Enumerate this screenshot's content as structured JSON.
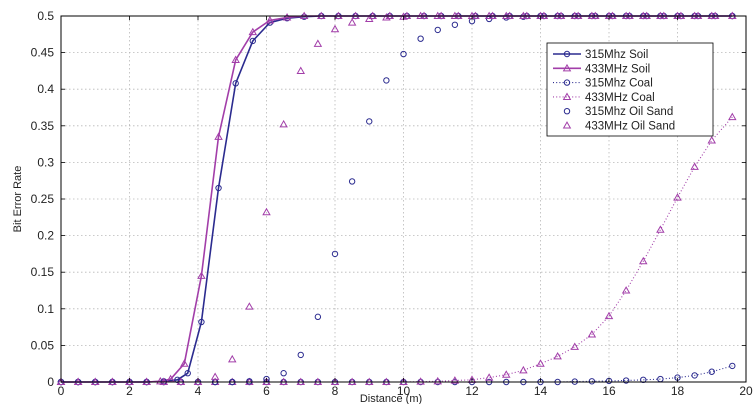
{
  "chart_data": {
    "type": "line",
    "title": "",
    "xlabel": "Distance (m)",
    "ylabel": "Bit Error Rate",
    "xlim": [
      0,
      20
    ],
    "ylim": [
      0,
      0.5
    ],
    "x_ticks": [
      "0",
      "2",
      "4",
      "6",
      "8",
      "10",
      "12",
      "14",
      "16",
      "18",
      "20"
    ],
    "y_ticks": [
      "0",
      "0.05",
      "0.1",
      "0.15",
      "0.2",
      "0.25",
      "0.3",
      "0.35",
      "0.4",
      "0.45",
      "0.5"
    ],
    "grid": true,
    "legend": "top-right",
    "colors": {
      "blue": "#2b2b8f",
      "magenta": "#a23ea9"
    },
    "series": [
      {
        "name": "315Mhz Soil",
        "color": "#2b2b8f",
        "marker": "circle",
        "line": "solid",
        "x": [
          0,
          0.5,
          1,
          1.5,
          2,
          2.5,
          3,
          3.4,
          3.7,
          4.1,
          4.6,
          5.1,
          5.6,
          6.1,
          6.6,
          7.1,
          7.6,
          8.1,
          8.6,
          9.1,
          9.6,
          10.1,
          10.6,
          11.1,
          11.6,
          12.1,
          12.6,
          13.1,
          13.6,
          14.1,
          14.6,
          15.1,
          15.6,
          16.1,
          16.6,
          17.1,
          17.6,
          18.1,
          18.6,
          19.1,
          19.6
        ],
        "y": [
          0,
          0,
          0,
          0,
          0,
          0,
          0.001,
          0.003,
          0.012,
          0.082,
          0.265,
          0.408,
          0.466,
          0.491,
          0.497,
          0.499,
          0.5,
          0.5,
          0.5,
          0.5,
          0.5,
          0.5,
          0.5,
          0.5,
          0.5,
          0.5,
          0.5,
          0.5,
          0.5,
          0.5,
          0.5,
          0.5,
          0.5,
          0.5,
          0.5,
          0.5,
          0.5,
          0.5,
          0.5,
          0.5,
          0.5
        ]
      },
      {
        "name": "433MHz Soil",
        "color": "#a23ea9",
        "marker": "triangle",
        "line": "solid",
        "x": [
          0,
          0.5,
          1,
          1.5,
          2,
          2.5,
          2.9,
          3.2,
          3.6,
          4.1,
          4.6,
          5.1,
          5.6,
          6.1,
          6.6,
          7.1,
          7.6,
          8.1,
          8.6,
          9.1,
          9.6,
          10.1,
          10.6,
          11.1,
          11.6,
          12.1,
          12.6,
          13.1,
          13.6,
          14.1,
          14.6,
          15.1,
          15.6,
          16.1,
          16.6,
          17.1,
          17.6,
          18.1,
          18.6,
          19.1,
          19.6
        ],
        "y": [
          0,
          0,
          0,
          0,
          0,
          0,
          0.001,
          0.004,
          0.025,
          0.145,
          0.335,
          0.44,
          0.478,
          0.494,
          0.498,
          0.5,
          0.5,
          0.5,
          0.5,
          0.5,
          0.5,
          0.5,
          0.5,
          0.5,
          0.5,
          0.5,
          0.5,
          0.5,
          0.5,
          0.5,
          0.5,
          0.5,
          0.5,
          0.5,
          0.5,
          0.5,
          0.5,
          0.5,
          0.5,
          0.5,
          0.5
        ]
      },
      {
        "name": "315Mhz Coal",
        "color": "#2b2b8f",
        "marker": "circle",
        "line": "dotted",
        "x": [
          0,
          0.5,
          1,
          1.5,
          2,
          2.5,
          3,
          3.5,
          4,
          4.5,
          5,
          5.5,
          6,
          6.5,
          7,
          7.5,
          8,
          8.5,
          9,
          9.5,
          10,
          10.5,
          11,
          11.5,
          12,
          12.5,
          13,
          13.5,
          14,
          14.5,
          15,
          15.5,
          16,
          16.5,
          17,
          17.5,
          18,
          18.5,
          19,
          19.6
        ],
        "y": [
          0,
          0,
          0,
          0,
          0,
          0,
          0,
          0,
          0,
          0,
          0,
          0,
          0,
          0,
          0,
          0,
          0,
          0,
          0,
          0,
          0,
          0,
          0,
          0,
          0,
          0,
          0,
          0,
          0,
          0,
          0.0005,
          0.001,
          0.0015,
          0.002,
          0.003,
          0.004,
          0.006,
          0.009,
          0.014,
          0.022
        ]
      },
      {
        "name": "433MHz Coal",
        "color": "#a23ea9",
        "marker": "triangle",
        "line": "dotted",
        "x": [
          0,
          0.5,
          1,
          1.5,
          2,
          2.5,
          3,
          3.5,
          4,
          4.5,
          5,
          5.5,
          6,
          6.5,
          7,
          7.5,
          8,
          8.5,
          9,
          9.5,
          10,
          10.5,
          11,
          11.5,
          12,
          12.5,
          13,
          13.5,
          14,
          14.5,
          15,
          15.5,
          16,
          16.5,
          17,
          17.5,
          18,
          18.5,
          19,
          19.6
        ],
        "y": [
          0,
          0,
          0,
          0,
          0,
          0,
          0,
          0,
          0,
          0,
          0,
          0,
          0,
          0,
          0,
          0,
          0,
          0,
          0,
          0,
          0,
          0.0005,
          0.001,
          0.002,
          0.003,
          0.006,
          0.01,
          0.016,
          0.025,
          0.035,
          0.048,
          0.065,
          0.09,
          0.125,
          0.165,
          0.208,
          0.252,
          0.294,
          0.33,
          0.362
        ]
      },
      {
        "name": "315Mhz Oil Sand",
        "color": "#2b2b8f",
        "marker": "circle",
        "line": "none",
        "x": [
          0,
          0.5,
          1,
          1.5,
          2,
          2.5,
          3,
          3.5,
          4,
          4.5,
          5,
          5.5,
          6,
          6.5,
          7,
          7.5,
          8,
          8.5,
          9,
          9.5,
          10,
          10.5,
          11,
          11.5,
          12,
          12.5,
          13,
          13.5,
          14,
          14.5,
          15,
          15.5,
          16,
          16.5,
          17,
          17.5,
          18,
          18.5,
          19,
          19.6
        ],
        "y": [
          0,
          0,
          0,
          0,
          0,
          0,
          0,
          0,
          0,
          0,
          0,
          0.001,
          0.004,
          0.012,
          0.037,
          0.089,
          0.175,
          0.274,
          0.356,
          0.412,
          0.448,
          0.469,
          0.481,
          0.488,
          0.493,
          0.496,
          0.498,
          0.499,
          0.5,
          0.5,
          0.5,
          0.5,
          0.5,
          0.5,
          0.5,
          0.5,
          0.5,
          0.5,
          0.5,
          0.5
        ]
      },
      {
        "name": "433MHz Oil Sand",
        "color": "#a23ea9",
        "marker": "triangle",
        "line": "none",
        "x": [
          0,
          0.5,
          1,
          1.5,
          2,
          2.5,
          3,
          3.5,
          4,
          4.5,
          5,
          5.5,
          6,
          6.5,
          7,
          7.5,
          8,
          8.5,
          9,
          9.5,
          10,
          10.5,
          11,
          11.5,
          12,
          12.5,
          13,
          13.5,
          14,
          14.5,
          15,
          15.5,
          16,
          16.5,
          17,
          17.5,
          18,
          18.5,
          19,
          19.6
        ],
        "y": [
          0,
          0,
          0,
          0,
          0,
          0,
          0,
          0,
          0,
          0.007,
          0.031,
          0.103,
          0.232,
          0.352,
          0.425,
          0.462,
          0.482,
          0.491,
          0.496,
          0.498,
          0.499,
          0.5,
          0.5,
          0.5,
          0.5,
          0.5,
          0.5,
          0.5,
          0.5,
          0.5,
          0.5,
          0.5,
          0.5,
          0.5,
          0.5,
          0.5,
          0.5,
          0.5,
          0.5,
          0.5
        ]
      }
    ]
  }
}
